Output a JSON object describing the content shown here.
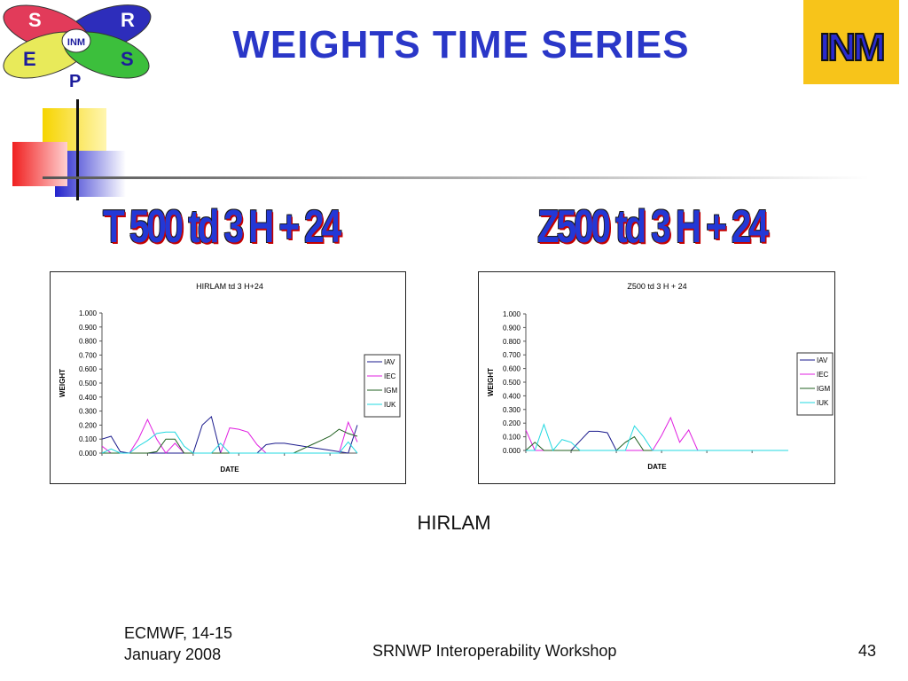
{
  "slide": {
    "title": "WEIGHTS TIME SERIES",
    "subtitle_left": "T 500  td 3 H + 24",
    "subtitle_right": "Z500  td 3 H + 24",
    "caption": "HIRLAM",
    "footer": {
      "left_line1": "ECMWF, 14-15",
      "left_line2": "January 2008",
      "center": "SRNWP Interoperability Workshop",
      "page_number": "43"
    }
  },
  "logo_left": {
    "letters": [
      "S",
      "R",
      "E",
      "S",
      "P"
    ],
    "center_text": "INM"
  },
  "logo_right": {
    "text": "INM"
  },
  "colors": {
    "IAV": "#1a1a8c",
    "IEC": "#e020e0",
    "IGM": "#206020",
    "IUK": "#22d8e0",
    "title": "#2a37c8",
    "logo_bg": "#f7c41a"
  },
  "chart_data": [
    {
      "type": "line",
      "title": "HIRLAM td 3 H+24",
      "xlabel": "DATE",
      "ylabel": "WEIGHT",
      "ylim": [
        0,
        1
      ],
      "yticks": [
        "1.000",
        "0.900",
        "0.800",
        "0.700",
        "0.600",
        "0.500",
        "0.400",
        "0.300",
        "0.200",
        "0.100",
        "0.000"
      ],
      "legend_position": "right",
      "x": [
        1,
        2,
        3,
        4,
        5,
        6,
        7,
        8,
        9,
        10,
        11,
        12,
        13,
        14,
        15,
        16,
        17,
        18,
        19,
        20,
        21,
        22,
        23,
        24,
        25,
        26,
        27,
        28,
        29
      ],
      "series": [
        {
          "name": "IAV",
          "values": [
            0.1,
            0.12,
            0.01,
            0.0,
            0.0,
            0.0,
            0.0,
            0.0,
            0.0,
            0.0,
            0.0,
            0.2,
            0.26,
            0.0,
            0.0,
            0.0,
            0.0,
            0.0,
            0.06,
            0.07,
            0.07,
            0.06,
            0.05,
            0.04,
            0.03,
            0.02,
            0.01,
            0.0,
            0.2
          ]
        },
        {
          "name": "IEC",
          "values": [
            0.05,
            0.0,
            0.0,
            0.0,
            0.1,
            0.24,
            0.1,
            0.0,
            0.07,
            0.0,
            0.0,
            0.0,
            0.0,
            0.0,
            0.18,
            0.17,
            0.15,
            0.06,
            0.0,
            0.0,
            0.0,
            0.0,
            0.0,
            0.0,
            0.0,
            0.0,
            0.0,
            0.22,
            0.08
          ]
        },
        {
          "name": "IGM",
          "values": [
            0.0,
            0.0,
            0.0,
            0.0,
            0.0,
            0.0,
            0.01,
            0.1,
            0.1,
            0.0,
            0.0,
            0.0,
            0.0,
            0.0,
            0.0,
            0.0,
            0.0,
            0.0,
            0.0,
            0.0,
            0.0,
            0.0,
            0.03,
            0.06,
            0.09,
            0.12,
            0.17,
            0.14,
            0.12
          ]
        },
        {
          "name": "IUK",
          "values": [
            0.0,
            0.03,
            0.0,
            0.0,
            0.05,
            0.09,
            0.14,
            0.15,
            0.15,
            0.05,
            0.0,
            0.0,
            0.0,
            0.07,
            0.0,
            0.0,
            0.0,
            0.0,
            0.0,
            0.0,
            0.0,
            0.0,
            0.0,
            0.0,
            0.0,
            0.0,
            0.0,
            0.08,
            0.0
          ]
        }
      ]
    },
    {
      "type": "line",
      "title": "Z500 td 3 H + 24",
      "xlabel": "DATE",
      "ylabel": "WEIGHT",
      "ylim": [
        0,
        1
      ],
      "yticks": [
        "1.000",
        "0.900",
        "0.800",
        "0.700",
        "0.600",
        "0.500",
        "0.400",
        "0.300",
        "0.200",
        "0.100",
        "0.000"
      ],
      "legend_position": "right",
      "x": [
        1,
        2,
        3,
        4,
        5,
        6,
        7,
        8,
        9,
        10,
        11,
        12,
        13,
        14,
        15,
        16,
        17,
        18,
        19,
        20,
        21,
        22,
        23,
        24,
        25,
        26,
        27,
        28,
        29,
        30
      ],
      "series": [
        {
          "name": "IAV",
          "values": [
            0.0,
            0.0,
            0.0,
            0.0,
            0.0,
            0.0,
            0.07,
            0.14,
            0.14,
            0.13,
            0.0,
            0.0,
            0.0,
            0.0,
            0.0,
            0.0,
            0.0,
            0.0,
            0.0,
            0.0,
            0.0,
            0.0,
            0.0,
            0.0,
            0.0,
            0.0,
            0.0,
            0.0,
            0.0,
            0.0
          ]
        },
        {
          "name": "IEC",
          "values": [
            0.15,
            0.0,
            0.0,
            0.0,
            0.0,
            0.0,
            0.0,
            0.0,
            0.0,
            0.0,
            0.0,
            0.0,
            0.0,
            0.0,
            0.0,
            0.11,
            0.24,
            0.06,
            0.15,
            0.0,
            0.0,
            0.0,
            0.0,
            0.0,
            0.0,
            0.0,
            0.0,
            0.0,
            0.0,
            0.0
          ]
        },
        {
          "name": "IGM",
          "values": [
            0.0,
            0.06,
            0.0,
            0.0,
            0.0,
            0.0,
            0.0,
            0.0,
            0.0,
            0.0,
            0.0,
            0.06,
            0.1,
            0.0,
            0.0,
            0.0,
            0.0,
            0.0,
            0.0,
            0.0,
            0.0,
            0.0,
            0.0,
            0.0,
            0.0,
            0.0,
            0.0,
            0.0,
            0.0,
            0.0
          ]
        },
        {
          "name": "IUK",
          "values": [
            0.0,
            0.0,
            0.19,
            0.0,
            0.08,
            0.06,
            0.0,
            0.0,
            0.0,
            0.0,
            0.0,
            0.0,
            0.18,
            0.1,
            0.0,
            0.0,
            0.0,
            0.0,
            0.0,
            0.0,
            0.0,
            0.0,
            0.0,
            0.0,
            0.0,
            0.0,
            0.0,
            0.0,
            0.0,
            0.0
          ]
        }
      ]
    }
  ]
}
